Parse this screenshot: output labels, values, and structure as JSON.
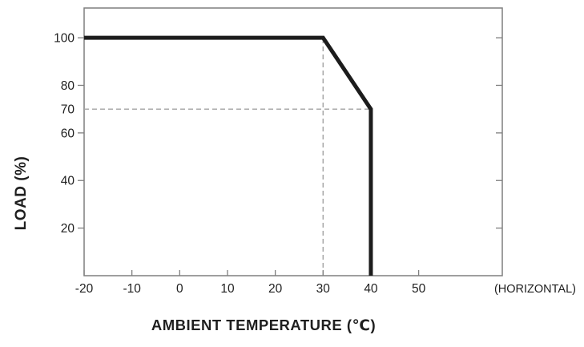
{
  "chart_data": {
    "type": "line",
    "title": "",
    "xlabel": "AMBIENT TEMPERATURE (℃)",
    "ylabel": "LOAD (%)",
    "annotation": "(HORIZONTAL)",
    "xlim": [
      -20,
      67.5
    ],
    "ylim": [
      0,
      112.5
    ],
    "grid": false,
    "x_ticks": {
      "values": [
        -20,
        -10,
        0,
        10,
        20,
        30,
        40,
        50
      ],
      "labels": [
        "-20",
        "-10",
        "0",
        "10",
        "20",
        "30",
        "40",
        "50"
      ]
    },
    "y_ticks": {
      "values": [
        100,
        80,
        70,
        60,
        40,
        20
      ],
      "labels": [
        "100",
        "80",
        "70",
        "60",
        "40",
        "20"
      ]
    },
    "y_tick_marks_left": [
      20,
      40,
      60,
      80,
      100
    ],
    "y_tick_marks_right": [
      20,
      40,
      60,
      80,
      100
    ],
    "series": [
      {
        "name": "load-derating-curve",
        "points": [
          {
            "x": -20,
            "y": 100
          },
          {
            "x": 30,
            "y": 100
          },
          {
            "x": 40,
            "y": 70
          },
          {
            "x": 40,
            "y": 0
          }
        ]
      }
    ],
    "guides": [
      {
        "type": "vertical",
        "x": 30,
        "y_from": 0,
        "y_to": 100
      },
      {
        "type": "horizontal",
        "y": 70,
        "x_from": -20,
        "x_to": 40
      }
    ],
    "colors": {
      "curve": "#1c1c1c",
      "axis": "#7f7f7f",
      "guide": "#a3a3a3",
      "text": "#1f1f1f"
    }
  }
}
